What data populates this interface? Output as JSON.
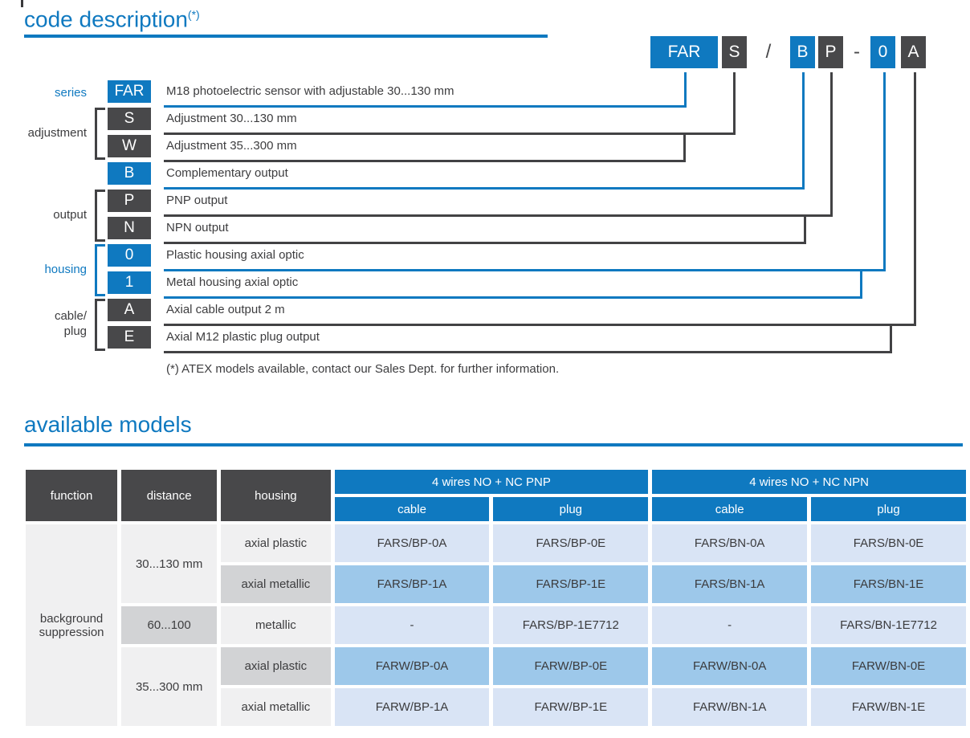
{
  "colors": {
    "accent_blue": "#0f79c0",
    "dark_gray": "#48484a",
    "body_text": "#3d3d3f",
    "cell_light_gray": "#f0f0f1",
    "cell_mid_gray": "#d2d3d5",
    "cell_light_blue": "#d9e4f5",
    "cell_mid_blue": "#9dc8ea"
  },
  "code_section": {
    "title": "code description",
    "title_sup": "(*)",
    "example_code": [
      {
        "text": "FAR"
      },
      {
        "text": "S"
      },
      {
        "text": "/"
      },
      {
        "text": "B"
      },
      {
        "text": "P"
      },
      {
        "text": "-"
      },
      {
        "text": "0"
      },
      {
        "text": "A"
      }
    ],
    "group_labels": {
      "series": "series",
      "adjustment": "adjustment",
      "output": "output",
      "housing": "housing",
      "cable_plug_line1": "cable/",
      "cable_plug_line2": "plug"
    },
    "rows": [
      {
        "code": "FAR",
        "desc": "M18 photoelectric sensor with adjustable 30...130 mm"
      },
      {
        "code": "S",
        "desc": "Adjustment 30...130 mm"
      },
      {
        "code": "W",
        "desc": "Adjustment 35...300 mm"
      },
      {
        "code": "B",
        "desc": "Complementary output"
      },
      {
        "code": "P",
        "desc": "PNP output"
      },
      {
        "code": "N",
        "desc": "NPN output"
      },
      {
        "code": "0",
        "desc": "Plastic housing axial optic"
      },
      {
        "code": "1",
        "desc": "Metal housing axial optic"
      },
      {
        "code": "A",
        "desc": "Axial cable output 2 m"
      },
      {
        "code": "E",
        "desc": "Axial M12 plastic plug output"
      }
    ],
    "footnote": "(*) ATEX models available, contact our Sales Dept. for further information."
  },
  "models_section": {
    "title": "available models",
    "columns": {
      "function": "function",
      "distance": "distance",
      "housing": "housing"
    },
    "groups": [
      {
        "label": "4 wires NO + NC PNP",
        "sub1": "cable",
        "sub2": "plug"
      },
      {
        "label": "4 wires NO + NC NPN",
        "sub1": "cable",
        "sub2": "plug"
      }
    ],
    "function_value": "background suppression",
    "distances": {
      "d1": "30...130 mm",
      "d2": "60...100",
      "d3": "35...300 mm"
    },
    "rows": [
      {
        "housing": "axial plastic",
        "c1": "FARS/BP-0A",
        "c2": "FARS/BP-0E",
        "c3": "FARS/BN-0A",
        "c4": "FARS/BN-0E"
      },
      {
        "housing": "axial metallic",
        "c1": "FARS/BP-1A",
        "c2": "FARS/BP-1E",
        "c3": "FARS/BN-1A",
        "c4": "FARS/BN-1E"
      },
      {
        "housing": "metallic",
        "c1": "-",
        "c2": "FARS/BP-1E7712",
        "c3": "-",
        "c4": "FARS/BN-1E7712"
      },
      {
        "housing": "axial plastic",
        "c1": "FARW/BP-0A",
        "c2": "FARW/BP-0E",
        "c3": "FARW/BN-0A",
        "c4": "FARW/BN-0E"
      },
      {
        "housing": "axial metallic",
        "c1": "FARW/BP-1A",
        "c2": "FARW/BP-1E",
        "c3": "FARW/BN-1A",
        "c4": "FARW/BN-1E"
      }
    ]
  }
}
